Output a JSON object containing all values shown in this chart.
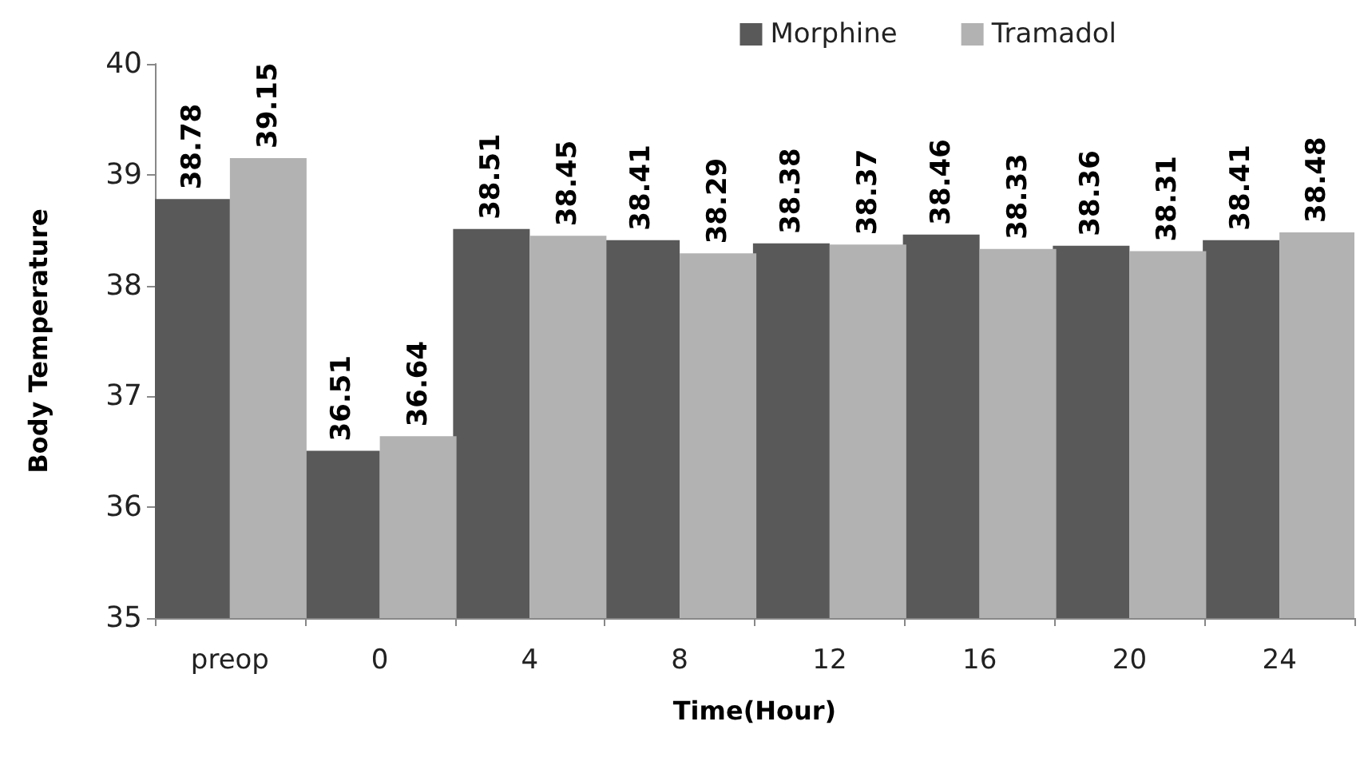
{
  "chart_data": {
    "type": "bar",
    "xlabel": "Time(Hour)",
    "ylabel": "Body Temperature",
    "categories": [
      "preop",
      "0",
      "4",
      "8",
      "12",
      "16",
      "20",
      "24"
    ],
    "series": [
      {
        "name": "Morphine",
        "color": "#595959",
        "values": [
          38.78,
          36.51,
          38.51,
          38.41,
          38.38,
          38.46,
          38.36,
          38.41
        ]
      },
      {
        "name": "Tramadol",
        "color": "#b2b2b2",
        "values": [
          39.15,
          36.64,
          38.45,
          38.29,
          38.37,
          38.33,
          38.31,
          38.48
        ]
      }
    ],
    "ylim": [
      35,
      40
    ],
    "yticks": [
      35,
      36,
      37,
      38,
      39,
      40
    ],
    "grid": false,
    "legend": "top right",
    "data_labels": true
  }
}
